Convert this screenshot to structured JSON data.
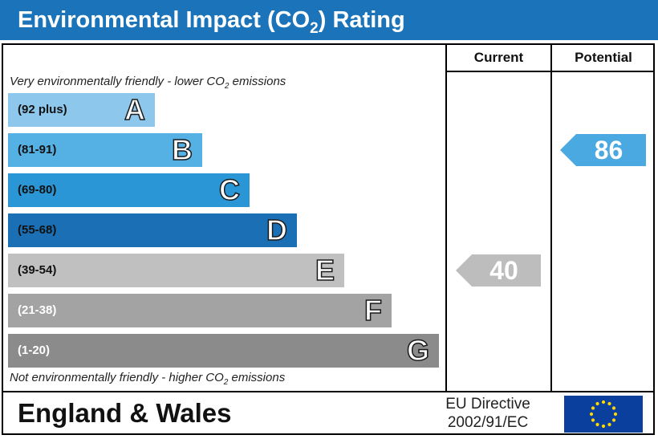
{
  "title": {
    "text": "Environmental Impact (CO",
    "subscript": "2",
    "suffix": ") Rating"
  },
  "columns": {
    "current": "Current",
    "potential": "Potential"
  },
  "notes": {
    "top": {
      "text": "Very environmentally friendly - lower CO",
      "subscript": "2",
      "suffix": " emissions"
    },
    "bottom": {
      "text": "Not environmentally friendly - higher CO",
      "subscript": "2",
      "suffix": " emissions"
    }
  },
  "chart_data": {
    "type": "bar",
    "title": "Environmental Impact (CO2) Rating",
    "categories": [
      "A",
      "B",
      "C",
      "D",
      "E",
      "F",
      "G"
    ],
    "bands": [
      {
        "letter": "A",
        "range": "(92 plus)",
        "min": 92,
        "max": null,
        "color": "#8dc8ec",
        "range_color": "#111111"
      },
      {
        "letter": "B",
        "range": "(81-91)",
        "min": 81,
        "max": 91,
        "color": "#55b0e3",
        "range_color": "#111111"
      },
      {
        "letter": "C",
        "range": "(69-80)",
        "min": 69,
        "max": 80,
        "color": "#2a96d6",
        "range_color": "#111111"
      },
      {
        "letter": "D",
        "range": "(55-68)",
        "min": 55,
        "max": 68,
        "color": "#1a6fb5",
        "range_color": "#111111"
      },
      {
        "letter": "E",
        "range": "(39-54)",
        "min": 39,
        "max": 54,
        "color": "#c0c0c0",
        "range_color": "#111111"
      },
      {
        "letter": "F",
        "range": "(21-38)",
        "min": 21,
        "max": 38,
        "color": "#a3a3a3",
        "range_color": "#ffffff"
      },
      {
        "letter": "G",
        "range": "(1-20)",
        "min": 1,
        "max": 20,
        "color": "#8b8b8b",
        "range_color": "#ffffff"
      }
    ],
    "current": {
      "value": 40,
      "label": "40",
      "band": "E",
      "color": "#bdbdbd"
    },
    "potential": {
      "value": 86,
      "label": "86",
      "band": "B",
      "color": "#4aa9e0"
    }
  },
  "footer": {
    "region": "England & Wales",
    "directive_line1": "EU Directive",
    "directive_line2": "2002/91/EC",
    "flag_color": "#0b3f9e",
    "star_color": "#ffd700"
  }
}
